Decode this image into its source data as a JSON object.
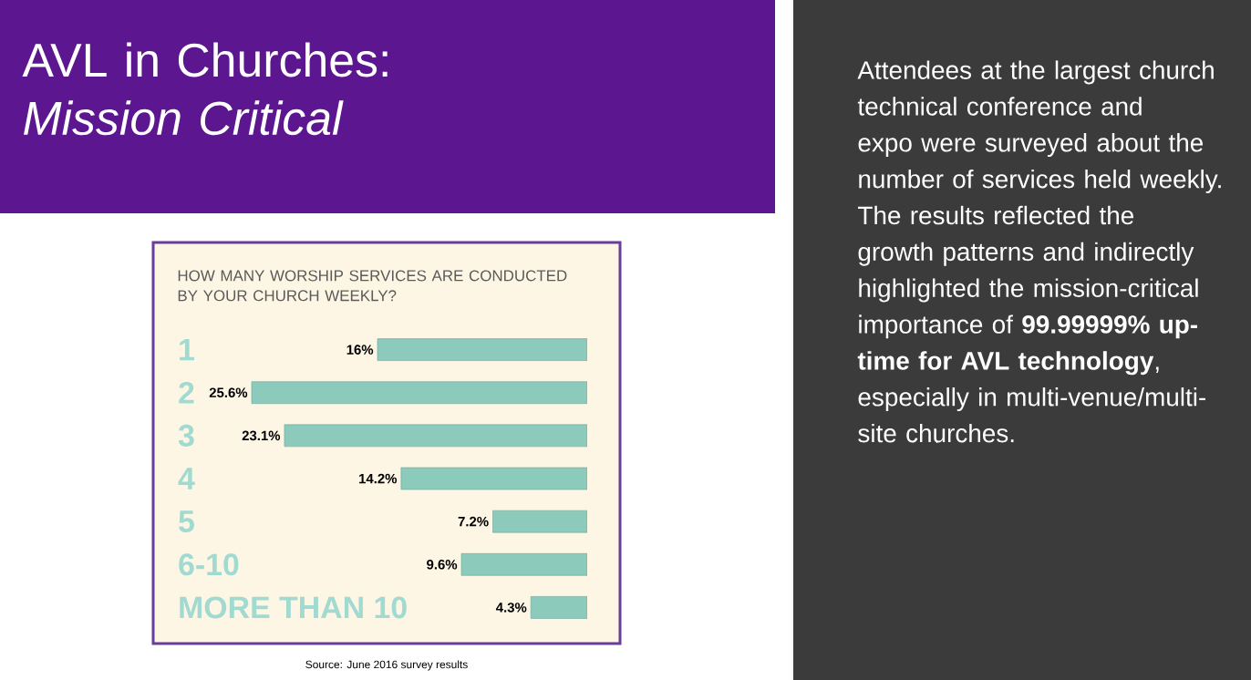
{
  "chart_data": {
    "type": "bar",
    "orientation": "horizontal",
    "title": "AVL in Churches: *Mission Critical*",
    "subtitle": "HOW MANY WORSHIP SERVICES ARE CONDUCTED BY YOUR CHURCH WEEKLY?",
    "categories": [
      "1",
      "2",
      "3",
      "4",
      "5",
      "6-10",
      "MORE THAN 10"
    ],
    "values": [
      16,
      25.6,
      23.1,
      14.2,
      7.2,
      9.6,
      4.3
    ],
    "value_labels": [
      "16%",
      "25.6%",
      "23.1%",
      "14.2%",
      "7.2%",
      "9.6%",
      "4.3%"
    ],
    "color": "#8ccabb",
    "tick_labels": "y",
    "annotations": [
      "Attendees at the largest church technical conference and expo were surveyed about the number of services held weekly. The results reflected the growth patterns and indirectly highlighted the mission-critical importance of **99.99999% up-time for AVL technology**, especially in multi-venue/multi-site churches.",
      "Source: June 2016 survey results"
    ]
  }
}
